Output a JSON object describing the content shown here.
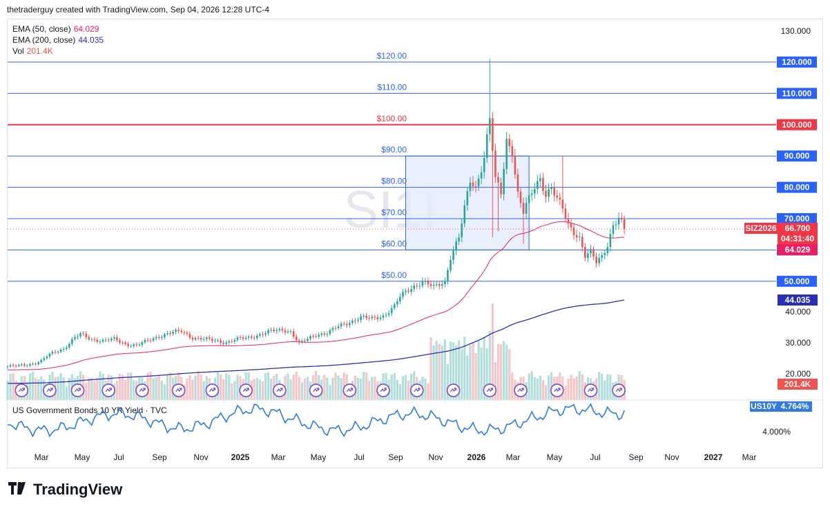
{
  "header": {
    "attribution": "thetraderguy created with TradingView.com, Sep 04, 2026 12:28 UTC-4"
  },
  "colors": {
    "up": "#26a69a",
    "down": "#ef5350",
    "vol_up": "#b2dfdb",
    "vol_down": "#f7c5c5",
    "ema50": "#e91e63",
    "ema200": "#2a2fb5",
    "hline": "#2962ff",
    "hline_red": "#f23645",
    "yield": "#2f7ae5",
    "range_box_fill": "#e3ebfd",
    "range_box_stroke": "#2962ff"
  },
  "legend": {
    "ema50_label": "EMA (50, close)",
    "ema50_value": "64.029",
    "ema200_label": "EMA (200, close)",
    "ema200_value": "44.035",
    "vol_label": "Vol",
    "vol_value": "201.4K"
  },
  "watermark": "SI1!",
  "lower_pane": {
    "title": "US Government Bonds 10 YR Yield · TVC",
    "symbol_badge": "US10Y",
    "value_badge": "4.764%",
    "tick": "4.000%"
  },
  "badges": {
    "symbol": "SIZ2026",
    "last_price": "66.700",
    "countdown": "04:31:40",
    "ema50": "64.029",
    "ema200": "44.035",
    "volume": "201.4K"
  },
  "footer": {
    "brand": "TradingView"
  },
  "chart_data": {
    "type": "candlestick",
    "title": "",
    "y_axis_ticks": [
      "130.000",
      "120.000",
      "110.000",
      "100.000",
      "90.000",
      "80.000",
      "70.000",
      "60.000",
      "50.000",
      "40.000",
      "30.000",
      "20.000"
    ],
    "x_axis_ticks": [
      "Mar",
      "May",
      "Jul",
      "Sep",
      "Nov",
      "2025",
      "Mar",
      "May",
      "Jul",
      "Sep",
      "Nov",
      "2026",
      "Mar",
      "May",
      "Jul",
      "Sep",
      "Nov",
      "2027",
      "Mar"
    ],
    "horizontal_levels": [
      {
        "label": "$120.00",
        "value": 120,
        "axis_label": "120.000"
      },
      {
        "label": "$110.00",
        "value": 110,
        "axis_label": "110.000"
      },
      {
        "label": "$100.00",
        "value": 100,
        "axis_label": "100.000",
        "highlight": true
      },
      {
        "label": "$90.00",
        "value": 90,
        "axis_label": "90.000"
      },
      {
        "label": "$80.00",
        "value": 80,
        "axis_label": "80.000"
      },
      {
        "label": "$70.00",
        "value": 70,
        "axis_label": "70.000"
      },
      {
        "label": "$60.00",
        "value": 60,
        "axis_label": "60.000"
      },
      {
        "label": "$50.00",
        "value": 50,
        "axis_label": "50.000"
      }
    ],
    "range_box": {
      "top": 90,
      "bottom": 60,
      "start_week": 142,
      "end_week": 186
    },
    "last_price": 66.7,
    "ema50_last": 64.029,
    "ema200_last": 44.035,
    "volume_last": "201.4K",
    "yield_last": 4.764,
    "events_weeks": [
      5,
      15,
      25,
      36,
      48,
      61,
      73,
      85,
      97,
      110,
      122,
      134,
      146,
      159,
      172,
      183,
      196,
      208,
      218
    ]
  }
}
